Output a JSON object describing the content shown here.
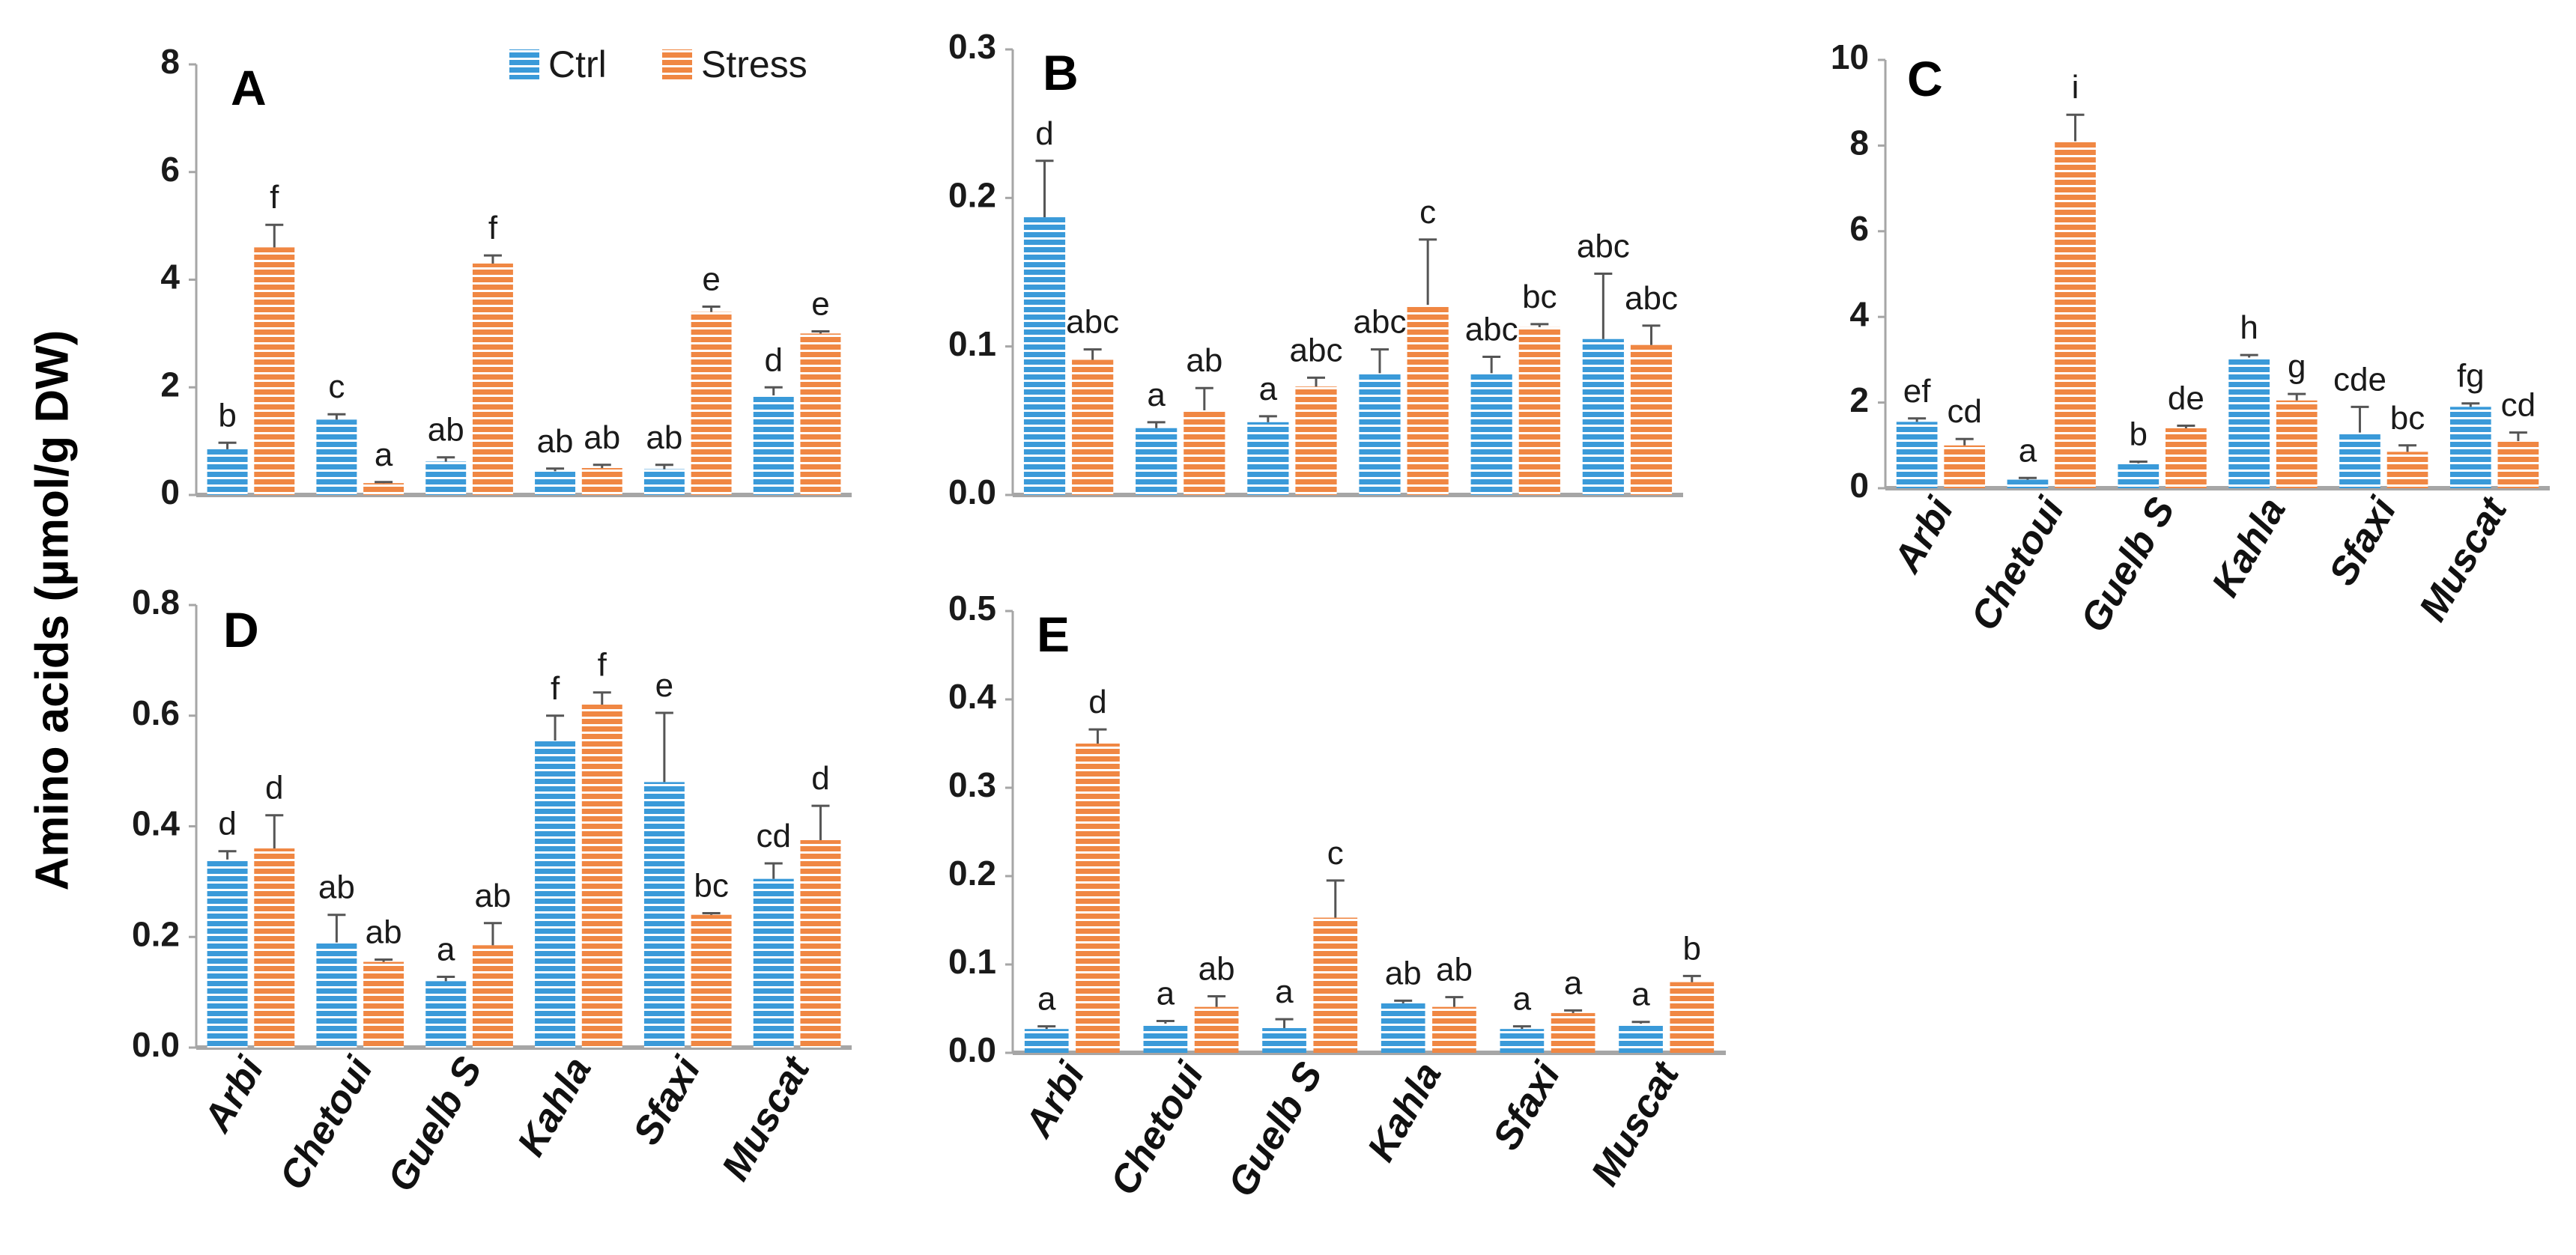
{
  "figure": {
    "y_axis_label": "Amino acids (µmol/g DW)"
  },
  "legend": [
    {
      "label": "Ctrl",
      "color": "#3a9ad9"
    },
    {
      "label": "Stress",
      "color": "#f08743"
    }
  ],
  "colors": {
    "ctrl": "#3a9ad9",
    "stress": "#f08743",
    "stripe": "#ffffff",
    "axis": "#a6a6a6",
    "error": "#555555"
  },
  "chart_data": [
    {
      "panel": "A",
      "type": "bar",
      "categories": [
        "Arbi",
        "Chetoui",
        "Guelb S",
        "Kahla",
        "Sfaxi",
        "Muscat"
      ],
      "show_category_labels": false,
      "ylim": [
        0,
        8
      ],
      "yticks": [
        0,
        2,
        4,
        6,
        8
      ],
      "ytick_labels": [
        "0",
        "2",
        "4",
        "6",
        "8"
      ],
      "series": [
        {
          "name": "Ctrl",
          "values": [
            0.85,
            1.4,
            0.62,
            0.44,
            0.48,
            1.85
          ],
          "errors": [
            0.12,
            0.1,
            0.08,
            0.05,
            0.08,
            0.15
          ],
          "letters": [
            "b",
            "c",
            "ab",
            "ab",
            "ab",
            "d"
          ]
        },
        {
          "name": "Stress",
          "values": [
            4.6,
            0.22,
            4.3,
            0.5,
            3.4,
            3.0
          ],
          "errors": [
            0.42,
            0.02,
            0.15,
            0.06,
            0.1,
            0.04
          ],
          "letters": [
            "f",
            "a",
            "f",
            "ab",
            "e",
            "e"
          ]
        }
      ]
    },
    {
      "panel": "B",
      "type": "bar",
      "categories": [
        "Arbi",
        "Chetoui",
        "Guelb S",
        "Kahla",
        "Sfaxi",
        "Muscat"
      ],
      "show_category_labels": false,
      "ylim": [
        0,
        0.3
      ],
      "yticks": [
        0,
        0.1,
        0.2,
        0.3
      ],
      "ytick_labels": [
        "0.0",
        "0.1",
        "0.2",
        "0.3"
      ],
      "series": [
        {
          "name": "Ctrl",
          "values": [
            0.187,
            0.045,
            0.049,
            0.082,
            0.082,
            0.105
          ],
          "errors": [
            0.038,
            0.004,
            0.004,
            0.016,
            0.011,
            0.044
          ],
          "letters": [
            "d",
            "a",
            "a",
            "abc",
            "abc",
            "abc"
          ]
        },
        {
          "name": "Stress",
          "values": [
            0.091,
            0.057,
            0.073,
            0.128,
            0.113,
            0.101
          ],
          "errors": [
            0.007,
            0.015,
            0.006,
            0.044,
            0.002,
            0.013
          ],
          "letters": [
            "abc",
            "ab",
            "abc",
            "c",
            "bc",
            "abc"
          ]
        }
      ]
    },
    {
      "panel": "C",
      "type": "bar",
      "categories": [
        "Arbi",
        "Chetoui",
        "Guelb S",
        "Kahla",
        "Sfaxi",
        "Muscat"
      ],
      "show_category_labels": true,
      "ylim": [
        0,
        10
      ],
      "yticks": [
        0,
        2,
        4,
        6,
        8,
        10
      ],
      "ytick_labels": [
        "0",
        "2",
        "4",
        "6",
        "8",
        "10"
      ],
      "series": [
        {
          "name": "Ctrl",
          "values": [
            1.55,
            0.2,
            0.58,
            3.05,
            1.3,
            1.9
          ],
          "errors": [
            0.08,
            0.04,
            0.04,
            0.06,
            0.6,
            0.08
          ],
          "letters": [
            "ef",
            "a",
            "b",
            "h",
            "cde",
            "fg"
          ]
        },
        {
          "name": "Stress",
          "values": [
            1.0,
            8.1,
            1.4,
            2.05,
            0.85,
            1.1
          ],
          "errors": [
            0.15,
            0.62,
            0.06,
            0.15,
            0.15,
            0.2
          ],
          "letters": [
            "cd",
            "i",
            "de",
            "g",
            "bc",
            "cd"
          ]
        }
      ]
    },
    {
      "panel": "D",
      "type": "bar",
      "categories": [
        "Arbi",
        "Chetoui",
        "Guelb S",
        "Kahla",
        "Sfaxi",
        "Muscat"
      ],
      "show_category_labels": true,
      "ylim": [
        0,
        0.8
      ],
      "yticks": [
        0,
        0.2,
        0.4,
        0.6,
        0.8
      ],
      "ytick_labels": [
        "0.0",
        "0.2",
        "0.4",
        "0.6",
        "0.8"
      ],
      "series": [
        {
          "name": "Ctrl",
          "values": [
            0.34,
            0.19,
            0.12,
            0.555,
            0.48,
            0.305
          ],
          "errors": [
            0.015,
            0.05,
            0.008,
            0.045,
            0.125,
            0.028
          ],
          "letters": [
            "d",
            "ab",
            "a",
            "f",
            "e",
            "cd"
          ]
        },
        {
          "name": "Stress",
          "values": [
            0.36,
            0.155,
            0.185,
            0.62,
            0.24,
            0.375
          ],
          "errors": [
            0.06,
            0.004,
            0.04,
            0.022,
            0.003,
            0.062
          ],
          "letters": [
            "d",
            "ab",
            "ab",
            "f",
            "bc",
            "d"
          ]
        }
      ]
    },
    {
      "panel": "E",
      "type": "bar",
      "categories": [
        "Arbi",
        "Chetoui",
        "Guelb S",
        "Kahla",
        "Sfaxi",
        "Muscat"
      ],
      "show_category_labels": true,
      "ylim": [
        0,
        0.5
      ],
      "yticks": [
        0,
        0.1,
        0.2,
        0.3,
        0.4,
        0.5
      ],
      "ytick_labels": [
        "0.0",
        "0.1",
        "0.2",
        "0.3",
        "0.4",
        "0.5"
      ],
      "series": [
        {
          "name": "Ctrl",
          "values": [
            0.027,
            0.033,
            0.028,
            0.056,
            0.027,
            0.033
          ],
          "errors": [
            0.003,
            0.003,
            0.01,
            0.003,
            0.003,
            0.002
          ],
          "letters": [
            "a",
            "a",
            "a",
            "ab",
            "a",
            "a"
          ]
        },
        {
          "name": "Stress",
          "values": [
            0.35,
            0.052,
            0.153,
            0.052,
            0.045,
            0.08
          ],
          "errors": [
            0.016,
            0.012,
            0.042,
            0.011,
            0.003,
            0.007
          ],
          "letters": [
            "d",
            "ab",
            "c",
            "ab",
            "a",
            "b"
          ]
        }
      ]
    }
  ]
}
